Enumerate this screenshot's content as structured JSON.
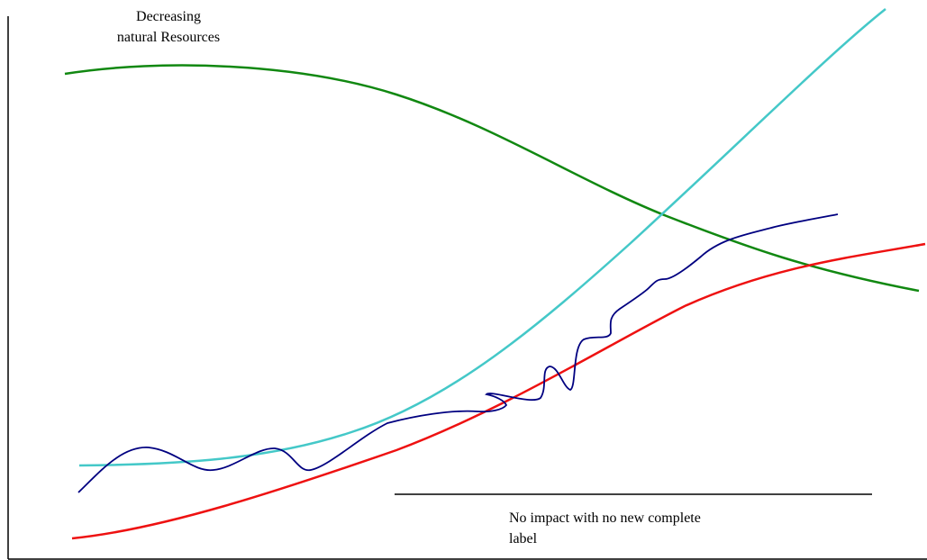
{
  "labels": {
    "decreasing_resources": [
      "Decreasing",
      "natural Resources"
    ],
    "no_impact": [
      "No impact with no new complete",
      "label"
    ]
  },
  "curves": {
    "green": {
      "color": "#118811",
      "meaning": "decreasing natural resources"
    },
    "cyan": {
      "color": "#44c8c8"
    },
    "navy": {
      "color": "#000080"
    },
    "red": {
      "color": "#ee1111"
    }
  },
  "axis_color": "#000000"
}
